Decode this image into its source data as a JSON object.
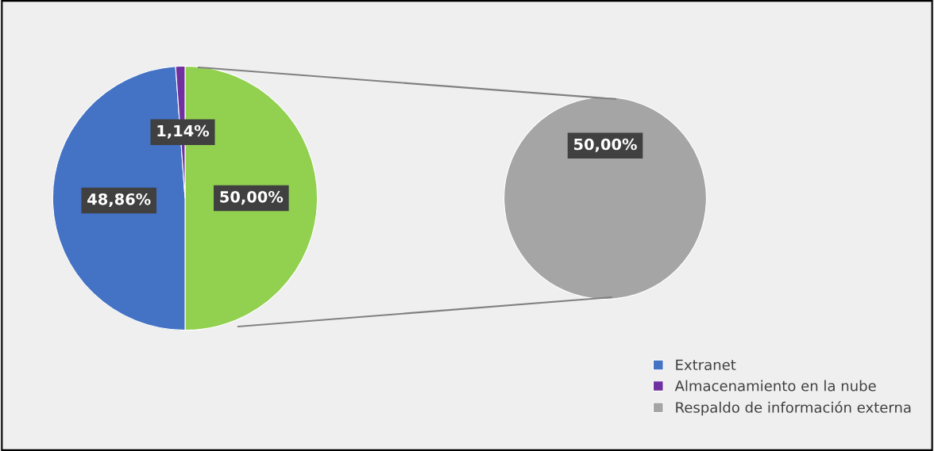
{
  "chart_data": [
    {
      "type": "pie",
      "categories": [
        null,
        "Extranet",
        "Almacenamiento en la nube"
      ],
      "values": [
        50.0,
        48.86,
        1.14
      ],
      "colors": [
        "#92d050",
        "#4472c4",
        "#7030a0"
      ],
      "value_labels": [
        "50,00%",
        "48,86%",
        "1,14%"
      ],
      "legend": "bottom right"
    },
    {
      "type": "pie",
      "categories": [
        "Respaldo de información externa"
      ],
      "values": [
        50.0
      ],
      "colors": [
        "#a5a5a5"
      ],
      "value_labels": [
        "50,00%"
      ],
      "legend": "bottom right"
    }
  ]
}
